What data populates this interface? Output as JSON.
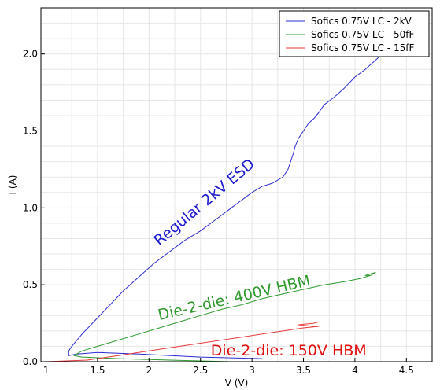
{
  "chart_data": {
    "type": "line",
    "xlabel": "V (V)",
    "ylabel": "I (A)",
    "xlim": [
      0.95,
      4.75
    ],
    "ylim": [
      0,
      2.3
    ],
    "xticks": [
      1,
      1.5,
      2,
      2.5,
      3,
      3.5,
      4,
      4.5
    ],
    "yticks": [
      0.0,
      0.5,
      1.0,
      1.5,
      2.0
    ],
    "xtick_labels": [
      "1",
      "1.5",
      "2",
      "2.5",
      "3",
      "3.5",
      "4",
      "4.5"
    ],
    "ytick_labels": [
      "0.0",
      "0.5",
      "1.0",
      "1.5",
      "2.0"
    ],
    "grid": true,
    "legend_position": "top-right",
    "series": [
      {
        "name": "Sofics 0.75V LC - 2kV",
        "color": "#2b2bd4",
        "x": [
          3.1,
          2.5,
          1.9,
          1.5,
          1.3,
          1.22,
          1.22,
          1.25,
          1.3,
          1.35,
          1.45,
          1.55,
          1.65,
          1.75,
          1.85,
          1.95,
          2.05,
          2.15,
          2.25,
          2.35,
          2.5,
          2.6,
          2.7,
          2.8,
          2.9,
          3.0,
          3.1,
          3.2,
          3.3,
          3.35,
          3.4,
          3.42,
          3.45,
          3.5,
          3.55,
          3.6,
          3.65,
          3.7,
          3.8,
          3.9,
          4.0,
          4.1,
          4.2,
          4.3,
          4.4,
          4.5,
          4.6,
          4.65,
          4.7
        ],
        "y": [
          0.02,
          0.03,
          0.05,
          0.06,
          0.05,
          0.04,
          0.07,
          0.1,
          0.14,
          0.18,
          0.25,
          0.32,
          0.39,
          0.46,
          0.52,
          0.58,
          0.64,
          0.69,
          0.74,
          0.79,
          0.85,
          0.9,
          0.95,
          1.0,
          1.05,
          1.1,
          1.14,
          1.16,
          1.2,
          1.25,
          1.35,
          1.4,
          1.45,
          1.5,
          1.55,
          1.58,
          1.62,
          1.67,
          1.72,
          1.78,
          1.85,
          1.9,
          1.96,
          2.02,
          2.07,
          2.12,
          2.17,
          2.22,
          2.27
        ]
      },
      {
        "name": "Sofics 0.75V LC - 50fF",
        "color": "#2e9a2e",
        "x": [
          2.8,
          2.2,
          1.7,
          1.35,
          1.27,
          1.35,
          1.5,
          1.7,
          1.9,
          2.1,
          2.3,
          2.5,
          2.7,
          2.9,
          3.1,
          3.3,
          3.5,
          3.7,
          3.9,
          4.05,
          4.15,
          4.1,
          4.2,
          4.15
        ],
        "y": [
          0.0,
          0.01,
          0.02,
          0.03,
          0.04,
          0.07,
          0.1,
          0.14,
          0.18,
          0.22,
          0.26,
          0.3,
          0.34,
          0.37,
          0.41,
          0.44,
          0.47,
          0.5,
          0.52,
          0.54,
          0.56,
          0.56,
          0.58,
          0.56
        ]
      },
      {
        "name": "Sofics 0.75V LC - 15fF",
        "color": "#e83a3a",
        "x": [
          1.0,
          1.2,
          1.4,
          1.5,
          1.6,
          1.7,
          1.8,
          1.9,
          2.1,
          2.3,
          2.5,
          2.7,
          2.9,
          3.1,
          3.3,
          3.5,
          3.65,
          3.6,
          3.45,
          3.6,
          3.65
        ],
        "y": [
          0.0,
          0.005,
          0.01,
          0.02,
          0.03,
          0.04,
          0.05,
          0.06,
          0.08,
          0.1,
          0.12,
          0.14,
          0.16,
          0.18,
          0.2,
          0.22,
          0.23,
          0.23,
          0.24,
          0.25,
          0.26
        ]
      }
    ],
    "annotations": [
      {
        "text": "Regular 2kV ESD",
        "color": "#1a1ad0",
        "x": 2.1,
        "y": 0.75,
        "rotation": -40
      },
      {
        "text": "Die-2-die: 400V HBM",
        "color": "#2e9a2e",
        "x": 2.1,
        "y": 0.27,
        "rotation": -13
      },
      {
        "text": "Die-2-die: 150V HBM",
        "color": "#e01010",
        "x": 2.6,
        "y": 0.04,
        "rotation": 0
      }
    ]
  }
}
